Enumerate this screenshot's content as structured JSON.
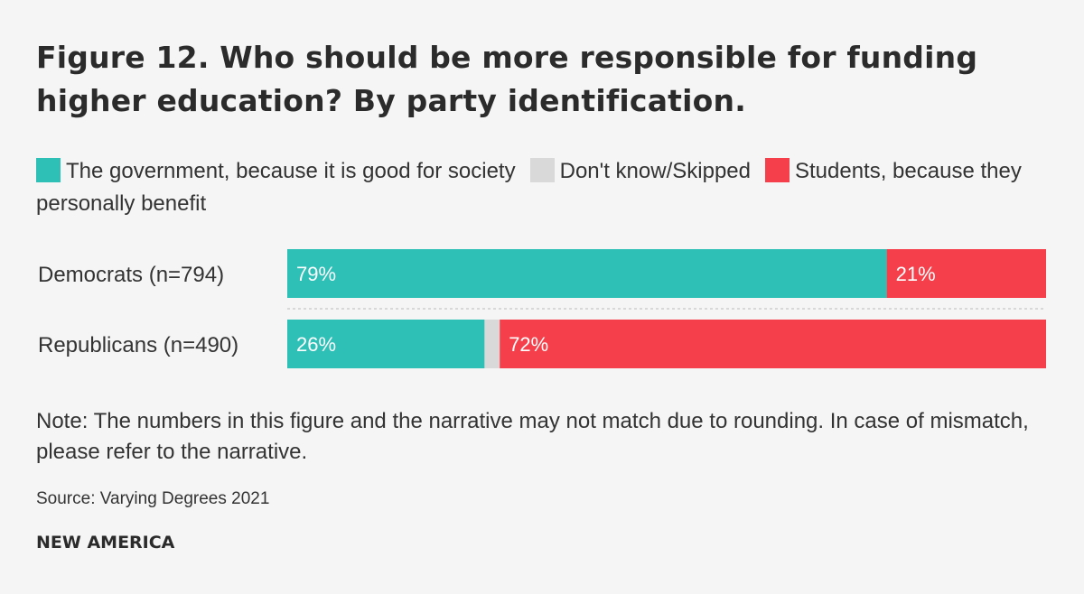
{
  "chart_data": {
    "type": "bar",
    "orientation": "horizontal",
    "stacked": true,
    "title": "Figure 12. Who should be more responsible for funding higher education? By party identification.",
    "categories": [
      "Democrats (n=794)",
      "Republicans (n=490)"
    ],
    "series": [
      {
        "name": "The government, because it is good for society",
        "color": "#2ebfb6",
        "values": [
          79,
          26
        ],
        "labels": [
          "79%",
          "26%"
        ]
      },
      {
        "name": "Don't know/Skipped",
        "color": "#d9d9d9",
        "values": [
          0,
          2
        ],
        "labels": [
          "",
          ""
        ]
      },
      {
        "name": "Students, because they personally benefit",
        "color": "#f5404b",
        "values": [
          21,
          72
        ],
        "labels": [
          "21%",
          "72%"
        ]
      }
    ],
    "xlim": [
      0,
      100
    ],
    "legend_position": "top",
    "grid": false
  },
  "note": "Note: The numbers in this figure and the narrative may not match due to rounding. In case of mismatch, please refer to the narrative.",
  "source": "Source: Varying Degrees 2021",
  "brand": "NEW AMERICA"
}
